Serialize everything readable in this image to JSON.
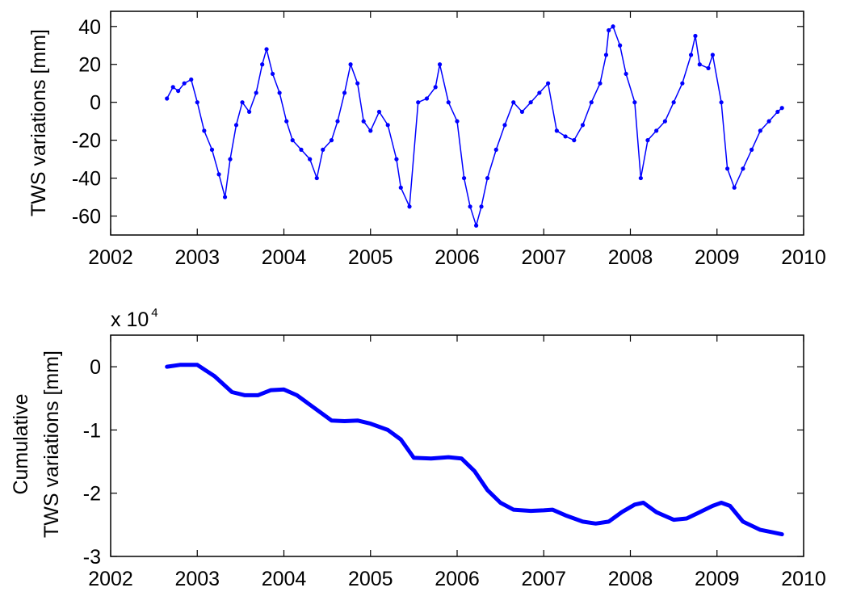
{
  "chart_data": [
    {
      "type": "line",
      "title": "",
      "xlabel": "",
      "ylabel": "TWS variations [mm]",
      "xlim": [
        2002,
        2010
      ],
      "ylim": [
        -70,
        48
      ],
      "xticks": [
        2002,
        2003,
        2004,
        2005,
        2006,
        2007,
        2008,
        2009,
        2010
      ],
      "yticks": [
        40,
        20,
        0,
        -20,
        -40,
        -60
      ],
      "marker": "dot",
      "color": "#0000ff",
      "grid": false,
      "series": [
        {
          "x": [
            2002.65,
            2002.72,
            2002.78,
            2002.85,
            2002.93,
            2003.0,
            2003.08,
            2003.17,
            2003.25,
            2003.32,
            2003.38,
            2003.45,
            2003.52,
            2003.6,
            2003.68,
            2003.75,
            2003.8,
            2003.87,
            2003.95,
            2004.03,
            2004.1,
            2004.2,
            2004.3,
            2004.38,
            2004.45,
            2004.55,
            2004.62,
            2004.7,
            2004.77,
            2004.85,
            2004.92,
            2005.0,
            2005.1,
            2005.2,
            2005.3,
            2005.35,
            2005.45,
            2005.55,
            2005.65,
            2005.75,
            2005.8,
            2005.9,
            2006.0,
            2006.08,
            2006.15,
            2006.22,
            2006.28,
            2006.35,
            2006.45,
            2006.55,
            2006.65,
            2006.75,
            2006.85,
            2006.95,
            2007.05,
            2007.15,
            2007.25,
            2007.35,
            2007.45,
            2007.55,
            2007.65,
            2007.72,
            2007.75,
            2007.8,
            2007.88,
            2007.95,
            2008.05,
            2008.12,
            2008.2,
            2008.3,
            2008.4,
            2008.5,
            2008.6,
            2008.7,
            2008.75,
            2008.8,
            2008.9,
            2008.95,
            2009.05,
            2009.12,
            2009.2,
            2009.3,
            2009.4,
            2009.5,
            2009.6,
            2009.7,
            2009.75
          ],
          "values": [
            2,
            8,
            6,
            10,
            12,
            0,
            -15,
            -25,
            -38,
            -50,
            -30,
            -12,
            0,
            -5,
            5,
            20,
            28,
            15,
            5,
            -10,
            -20,
            -25,
            -30,
            -40,
            -25,
            -20,
            -10,
            5,
            20,
            10,
            -10,
            -15,
            -5,
            -12,
            -30,
            -45,
            -55,
            0,
            2,
            8,
            20,
            0,
            -10,
            -40,
            -55,
            -65,
            -55,
            -40,
            -25,
            -12,
            0,
            -5,
            0,
            5,
            10,
            -15,
            -18,
            -20,
            -12,
            0,
            10,
            25,
            38,
            40,
            30,
            15,
            0,
            -40,
            -20,
            -15,
            -10,
            0,
            10,
            25,
            35,
            20,
            18,
            25,
            0,
            -35,
            -45,
            -35,
            -25,
            -15,
            -10,
            -5,
            -3
          ]
        }
      ]
    },
    {
      "type": "line",
      "title": "",
      "xlabel": "",
      "ylabel": [
        "Cumulative",
        "TWS variations [mm]"
      ],
      "multiplier_base": "x 10",
      "multiplier_exponent": "4",
      "xlim": [
        2002,
        2010
      ],
      "ylim": [
        -3,
        0.5
      ],
      "xticks": [
        2002,
        2003,
        2004,
        2005,
        2006,
        2007,
        2008,
        2009,
        2010
      ],
      "yticks": [
        0,
        -1,
        -2,
        -3
      ],
      "unit_scale": 10000,
      "color": "#0000ff",
      "grid": false,
      "series": [
        {
          "x": [
            2002.65,
            2002.8,
            2003.0,
            2003.2,
            2003.4,
            2003.55,
            2003.7,
            2003.85,
            2004.0,
            2004.15,
            2004.35,
            2004.55,
            2004.7,
            2004.85,
            2005.0,
            2005.2,
            2005.35,
            2005.5,
            2005.7,
            2005.9,
            2006.05,
            2006.2,
            2006.35,
            2006.5,
            2006.65,
            2006.85,
            2007.0,
            2007.1,
            2007.25,
            2007.45,
            2007.6,
            2007.75,
            2007.9,
            2008.05,
            2008.15,
            2008.3,
            2008.5,
            2008.65,
            2008.8,
            2008.95,
            2009.05,
            2009.15,
            2009.3,
            2009.5,
            2009.65,
            2009.75
          ],
          "values": [
            0,
            0.03,
            0.03,
            -0.15,
            -0.4,
            -0.45,
            -0.45,
            -0.37,
            -0.36,
            -0.45,
            -0.65,
            -0.85,
            -0.86,
            -0.85,
            -0.9,
            -1.0,
            -1.15,
            -1.44,
            -1.45,
            -1.43,
            -1.45,
            -1.65,
            -1.95,
            -2.15,
            -2.26,
            -2.28,
            -2.27,
            -2.26,
            -2.35,
            -2.45,
            -2.48,
            -2.45,
            -2.3,
            -2.18,
            -2.15,
            -2.3,
            -2.42,
            -2.4,
            -2.3,
            -2.2,
            -2.15,
            -2.2,
            -2.45,
            -2.58,
            -2.62,
            -2.65
          ]
        }
      ]
    }
  ]
}
